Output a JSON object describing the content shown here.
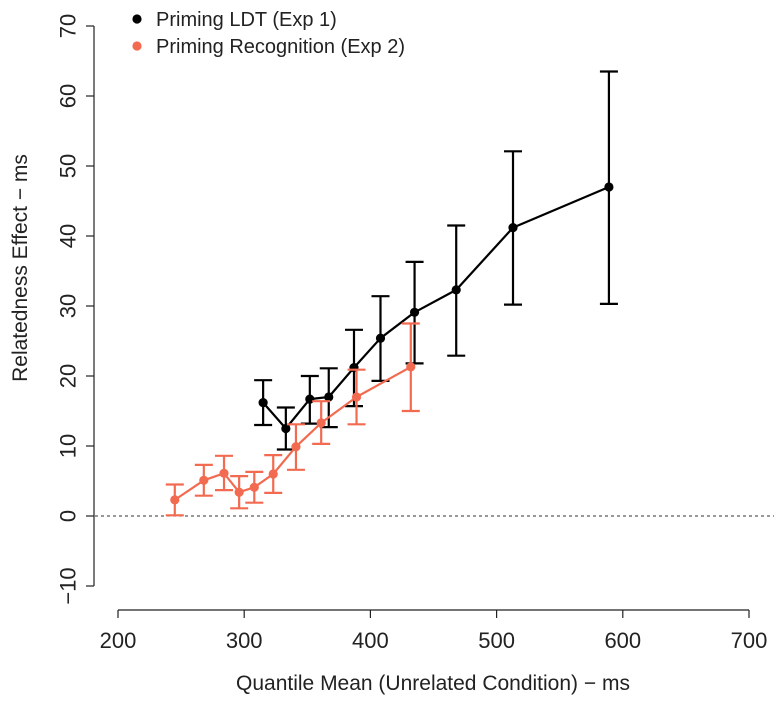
{
  "chart_data": {
    "type": "line",
    "title": "",
    "xlabel": "Quantile Mean (Unrelated Condition) − ms",
    "ylabel": "Relatedness Effect − ms",
    "xlim": [
      200,
      700
    ],
    "ylim": [
      -10,
      70
    ],
    "xticks": [
      200,
      300,
      400,
      500,
      600,
      700
    ],
    "yticks": [
      -10,
      0,
      10,
      20,
      30,
      40,
      50,
      60,
      70
    ],
    "xtick_labels": [
      "200",
      "300",
      "400",
      "500",
      "600",
      "700"
    ],
    "ytick_labels": [
      "−10",
      "0",
      "10",
      "20",
      "30",
      "40",
      "50",
      "60",
      "70"
    ],
    "reference_line": {
      "y": 0,
      "style": "dashed"
    },
    "grid": false,
    "legend_position": "top-left",
    "series": [
      {
        "name": "Priming LDT (Exp 1)",
        "color": "#000000",
        "x": [
          315,
          333,
          352,
          367,
          387,
          408,
          435,
          468,
          513,
          589
        ],
        "y": [
          16.2,
          12.5,
          16.7,
          17.0,
          21.2,
          25.4,
          29.1,
          32.3,
          41.2,
          47.0
        ],
        "err_low": [
          13.0,
          9.5,
          13.2,
          12.7,
          15.7,
          19.3,
          21.8,
          22.9,
          30.2,
          30.3
        ],
        "err_high": [
          19.4,
          15.5,
          20.0,
          21.1,
          26.6,
          31.4,
          36.3,
          41.5,
          52.1,
          63.5
        ]
      },
      {
        "name": "Priming Recognition (Exp 2)",
        "color": "#F26B50",
        "x": [
          245,
          268,
          284,
          296,
          308,
          323,
          341,
          361,
          389,
          432
        ],
        "y": [
          2.3,
          5.1,
          6.1,
          3.4,
          4.1,
          6.0,
          9.9,
          13.3,
          17.0,
          21.3
        ],
        "err_low": [
          0.1,
          2.9,
          3.7,
          1.1,
          1.9,
          3.3,
          6.6,
          10.3,
          13.1,
          15.0
        ],
        "err_high": [
          4.5,
          7.3,
          8.6,
          5.7,
          6.3,
          8.7,
          13.1,
          16.4,
          20.9,
          27.5
        ]
      }
    ]
  }
}
